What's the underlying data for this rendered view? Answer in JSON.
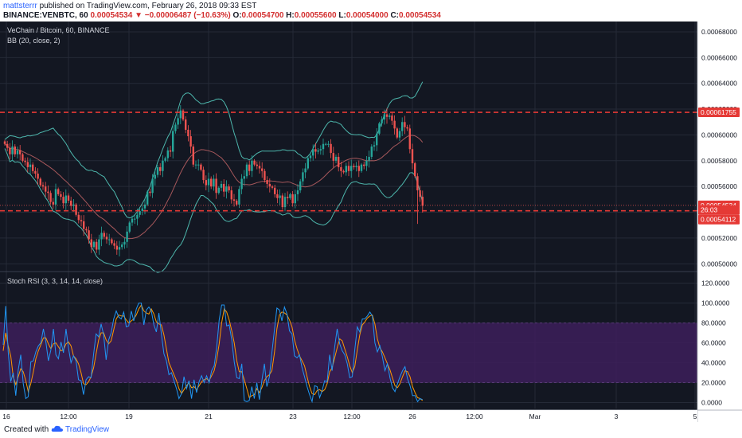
{
  "header": {
    "user": "mattsterrr",
    "published": "published on TradingView.com, February 26, 2018 09:33 EST",
    "symbol": "BINANCE:VENBTC, 60",
    "last": "0.00054534",
    "change": "−0.00006487 (−10.63%)",
    "open_label": "O:",
    "open": "0.00054700",
    "high_label": "H:",
    "high": "0.00055600",
    "low_label": "L:",
    "low": "0.00054000",
    "close_label": "C:",
    "close": "0.00054534"
  },
  "panel": {
    "title": "VeChain / Bitcoin, 60, BINANCE",
    "indicator": "BB (20, close, 2)",
    "lower_indicator": "Stoch RSI (3, 3, 14, 14, close)"
  },
  "footer": {
    "created_with": "Created with",
    "brand": "TradingView"
  },
  "colors": {
    "background": "#131722",
    "grid": "#252a37",
    "up": "#26a69a",
    "down": "#ef5350",
    "band": "#4db6ac",
    "basis": "#e57373",
    "level_line": "#e53935",
    "stoch_k": "#2196f3",
    "stoch_d": "#ff9800",
    "stoch_zone": "#3d1f5a"
  },
  "chart_data": [
    {
      "type": "candlestick",
      "title": "VeChain / Bitcoin, 60, BINANCE",
      "x_ticks": [
        "16",
        "12:00",
        "19",
        "21",
        "23",
        "12:00",
        "26",
        "12:00",
        "Mar",
        "3",
        "5"
      ],
      "y_ticks": [
        "0.00068000",
        "0.00066000",
        "0.00064000",
        "0.00062000",
        "0.00060000",
        "0.00058000",
        "0.00056000",
        "0.00054000",
        "0.00052000",
        "0.00050000"
      ],
      "ylim": [
        0.000494,
        0.000688
      ],
      "horizontal_levels": [
        0.00061755,
        0.00054112
      ],
      "price_labels": {
        "level_upper": "0.00061755",
        "last": "0.00054534",
        "timer": "26:03",
        "level_lower": "0.00054112"
      },
      "close_series": [
        0.000593,
        0.00059,
        0.000585,
        0.000591,
        0.000585,
        0.000588,
        0.000585,
        0.00058,
        0.000579,
        0.000575,
        0.000577,
        0.000572,
        0.00057,
        0.000566,
        0.000561,
        0.00056,
        0.000556,
        0.000555,
        0.000548,
        0.000546,
        0.000558,
        0.000554,
        0.000552,
        0.000547,
        0.000553,
        0.000549,
        0.000545,
        0.000546,
        0.000538,
        0.000534,
        0.000533,
        0.000527,
        0.000526,
        0.000519,
        0.000513,
        0.000517,
        0.000511,
        0.000519,
        0.000524,
        0.000521,
        0.000519,
        0.000519,
        0.000516,
        0.000514,
        0.000511,
        0.000513,
        0.000515,
        0.000517,
        0.000525,
        0.000532,
        0.000535,
        0.000535,
        0.000538,
        0.000541,
        0.000543,
        0.000546,
        0.000556,
        0.000555,
        0.000566,
        0.000569,
        0.000575,
        0.000572,
        0.00058,
        0.000582,
        0.000588,
        0.000587,
        0.000603,
        0.000608,
        0.000613,
        0.000619,
        0.000612,
        0.000604,
        0.000599,
        0.000591,
        0.000577,
        0.000577,
        0.000577,
        0.000573,
        0.000565,
        0.000561,
        0.000566,
        0.00056,
        0.000566,
        0.000555,
        0.000559,
        0.000562,
        0.000556,
        0.00056,
        0.000557,
        0.00055,
        0.000549,
        0.000546,
        0.000558,
        0.000566,
        0.000568,
        0.000577,
        0.000572,
        0.00058,
        0.000577,
        0.000576,
        0.000574,
        0.000572,
        0.000565,
        0.000562,
        0.00056,
        0.000559,
        0.000554,
        0.000551,
        0.000553,
        0.000544,
        0.000552,
        0.000551,
        0.000554,
        0.000547,
        0.000554,
        0.000557,
        0.000564,
        0.000571,
        0.000574,
        0.000582,
        0.000584,
        0.000589,
        0.000587,
        0.000588,
        0.000589,
        0.000593,
        0.000593,
        0.000593,
        0.000586,
        0.00058,
        0.000583,
        0.000575,
        0.000572,
        0.000571,
        0.000576,
        0.000572,
        0.000576,
        0.000575,
        0.000576,
        0.000572,
        0.000577,
        0.000576,
        0.00058,
        0.000583,
        0.000591,
        0.000592,
        0.000601,
        0.000609,
        0.000612,
        0.000616,
        0.000614,
        0.000615,
        0.000611,
        0.000605,
        0.000598,
        0.000603,
        0.00061,
        0.000606,
        0.000605,
        0.000589,
        0.000578,
        0.000568,
        0.000557,
        0.000552,
        0.000545
      ]
    },
    {
      "type": "line",
      "title": "Stoch RSI (3, 3, 14, 14, close)",
      "y_ticks": [
        "120.0000",
        "100.0000",
        "80.0000",
        "60.0000",
        "40.0000",
        "20.0000",
        "0.0000"
      ],
      "ylim": [
        -6,
        130
      ],
      "bands": [
        20,
        80
      ],
      "series": [
        {
          "values": [
            58,
            97,
            51,
            21,
            30,
            7,
            33,
            48,
            19,
            4,
            6,
            41,
            42,
            51,
            57,
            60,
            74,
            61,
            42,
            53,
            74,
            48,
            44,
            61,
            50,
            74,
            55,
            40,
            47,
            42,
            23,
            22,
            8,
            23,
            26,
            25,
            49,
            69,
            66,
            79,
            68,
            43,
            63,
            70,
            84,
            92,
            86,
            84,
            91,
            76,
            77,
            92,
            82,
            94,
            100,
            100,
            78,
            93,
            96,
            92,
            78,
            71,
            90,
            69,
            49,
            42,
            28,
            30,
            22,
            14,
            4,
            9,
            26,
            14,
            22,
            4,
            23,
            10,
            21,
            27,
            20,
            27,
            20,
            32,
            37,
            55,
            83,
            98,
            98,
            77,
            78,
            63,
            41,
            25,
            24,
            39,
            2,
            1,
            2,
            16,
            4,
            20,
            3,
            22,
            39,
            16,
            26,
            50,
            73,
            95,
            93,
            82,
            96,
            89,
            72,
            69,
            47,
            45,
            48,
            35,
            26,
            16,
            8,
            1,
            17,
            16,
            5,
            12,
            22,
            21,
            48,
            32,
            56,
            74,
            59,
            52,
            48,
            39,
            25,
            26,
            53,
            76,
            71,
            84,
            84,
            87,
            91,
            87,
            60,
            51,
            57,
            46,
            32,
            39,
            25,
            15,
            11,
            19,
            26,
            32,
            36,
            24,
            17,
            7,
            7,
            1,
            4,
            3
          ]
        },
        {
          "values": [
            52,
            70,
            57,
            47,
            26,
            18,
            26,
            34,
            31,
            22,
            11,
            19,
            31,
            44,
            52,
            58,
            65,
            65,
            59,
            54,
            59,
            60,
            56,
            52,
            53,
            59,
            61,
            57,
            47,
            44,
            39,
            30,
            19,
            18,
            21,
            26,
            35,
            49,
            63,
            70,
            70,
            63,
            59,
            62,
            73,
            84,
            88,
            87,
            87,
            83,
            80,
            82,
            84,
            88,
            94,
            98,
            92,
            90,
            89,
            94,
            89,
            81,
            79,
            78,
            68,
            54,
            40,
            34,
            28,
            22,
            14,
            9,
            13,
            17,
            20,
            15,
            16,
            13,
            17,
            21,
            23,
            24,
            22,
            27,
            32,
            43,
            59,
            80,
            94,
            91,
            83,
            72,
            60,
            42,
            31,
            31,
            23,
            14,
            5,
            7,
            8,
            14,
            10,
            15,
            22,
            26,
            28,
            32,
            50,
            74,
            88,
            91,
            90,
            88,
            83,
            76,
            63,
            54,
            47,
            42,
            37,
            26,
            16,
            9,
            8,
            12,
            13,
            11,
            13,
            19,
            31,
            35,
            45,
            55,
            64,
            62,
            54,
            46,
            37,
            30,
            36,
            53,
            68,
            78,
            81,
            85,
            87,
            88,
            79,
            64,
            55,
            51,
            45,
            39,
            33,
            25,
            17,
            15,
            19,
            26,
            32,
            31,
            26,
            16,
            10,
            5,
            4,
            2
          ]
        }
      ]
    }
  ]
}
